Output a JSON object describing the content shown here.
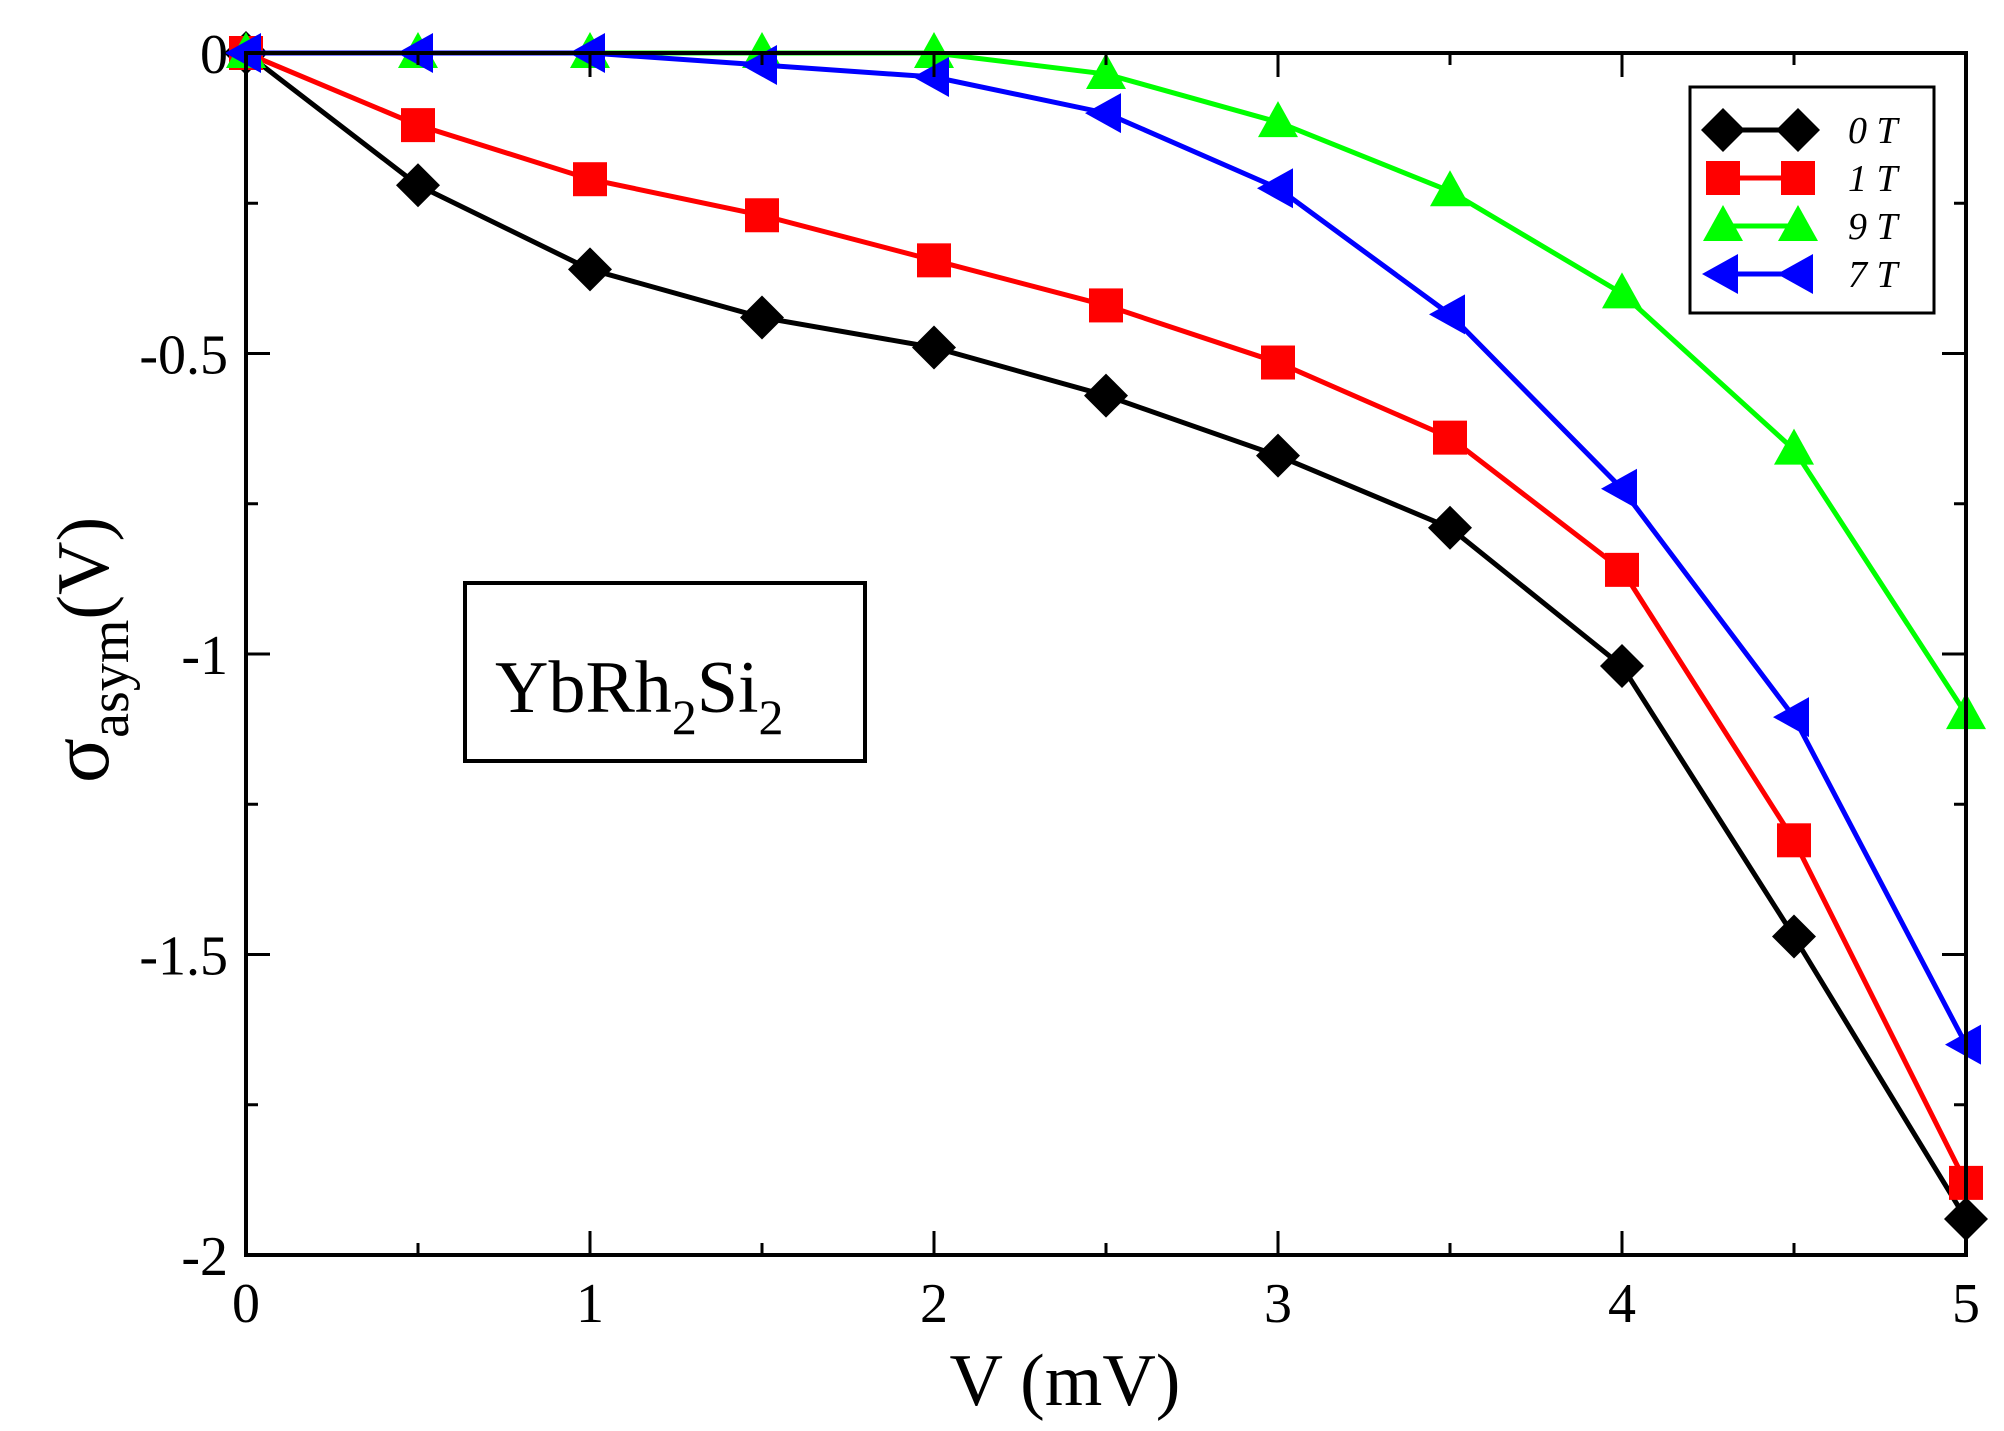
{
  "chart_data": {
    "type": "line",
    "title": "",
    "xlabel": "V (mV)",
    "ylabel": {
      "main": "σ",
      "sub": "asym",
      "tail": "(V)"
    },
    "xlim": [
      0,
      5
    ],
    "ylim": [
      -2,
      0
    ],
    "xticks": [
      0,
      1,
      2,
      3,
      4,
      5
    ],
    "xtick_labels": [
      "0",
      "1",
      "2",
      "3",
      "4",
      "5"
    ],
    "yticks": [
      0,
      -0.5,
      -1,
      -1.5,
      -2
    ],
    "ytick_labels": [
      "0",
      "-0.5",
      "-1",
      "-1.5",
      "-2"
    ],
    "grid": false,
    "legend_position": "top-right",
    "annotation": {
      "base": "YbRh",
      "sub1": "2",
      "mid": "Si",
      "sub2": "2"
    },
    "x": [
      0,
      0.5,
      1,
      1.5,
      2,
      2.5,
      3,
      3.5,
      4,
      4.5,
      5
    ],
    "series": [
      {
        "name": "0 T",
        "color": "#000000",
        "marker": "diamond",
        "values": [
          0,
          -0.22,
          -0.36,
          -0.44,
          -0.49,
          -0.57,
          -0.67,
          -0.79,
          -1.02,
          -1.47,
          -1.94
        ]
      },
      {
        "name": "1 T",
        "color": "#ff0000",
        "marker": "square",
        "values": [
          0,
          -0.12,
          -0.21,
          -0.27,
          -0.345,
          -0.42,
          -0.515,
          -0.64,
          -0.86,
          -1.31,
          -1.88
        ]
      },
      {
        "name": "9 T",
        "color": "#00ff00",
        "marker": "triangle-up",
        "values": [
          0,
          0,
          0,
          0,
          0,
          -0.035,
          -0.115,
          -0.23,
          -0.4,
          -0.66,
          -1.1
        ]
      },
      {
        "name": "7 T",
        "color": "#0000ff",
        "marker": "triangle-left",
        "values": [
          0,
          0,
          0,
          -0.02,
          -0.04,
          -0.1,
          -0.225,
          -0.435,
          -0.725,
          -1.105,
          -1.65
        ]
      }
    ]
  }
}
